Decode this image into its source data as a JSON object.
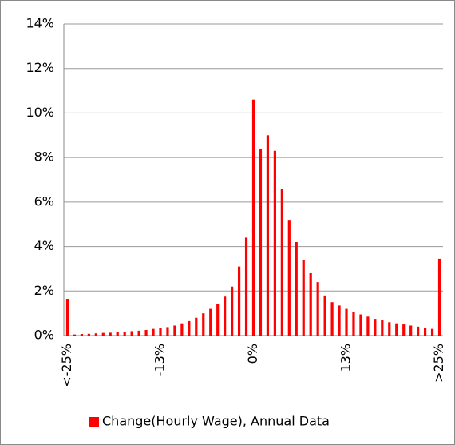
{
  "chart_data": {
    "type": "bar",
    "categories": [
      "<-25%",
      null,
      null,
      null,
      null,
      null,
      null,
      null,
      null,
      null,
      null,
      null,
      null,
      "-13%",
      null,
      null,
      null,
      null,
      null,
      null,
      null,
      null,
      null,
      null,
      null,
      null,
      "0%",
      null,
      null,
      null,
      null,
      null,
      null,
      null,
      null,
      null,
      null,
      null,
      null,
      "13%",
      null,
      null,
      null,
      null,
      null,
      null,
      null,
      null,
      null,
      null,
      null,
      null,
      ">25%"
    ],
    "series": [
      {
        "name": "Change(Hourly Wage), Annual Data",
        "color": "#ff0000",
        "values": [
          1.65,
          0.05,
          0.07,
          0.08,
          0.1,
          0.12,
          0.13,
          0.15,
          0.17,
          0.2,
          0.22,
          0.25,
          0.3,
          0.33,
          0.38,
          0.45,
          0.55,
          0.65,
          0.8,
          1.0,
          1.2,
          1.4,
          1.75,
          2.2,
          3.1,
          4.4,
          10.6,
          8.4,
          9.0,
          8.3,
          6.6,
          5.2,
          4.2,
          3.4,
          2.8,
          2.4,
          1.8,
          1.5,
          1.35,
          1.2,
          1.05,
          0.95,
          0.85,
          0.75,
          0.7,
          0.6,
          0.55,
          0.5,
          0.45,
          0.4,
          0.35,
          0.3,
          3.45
        ]
      }
    ],
    "ylim": [
      0,
      14
    ],
    "yticks": [
      {
        "value": 0,
        "label": "0%"
      },
      {
        "value": 2,
        "label": "2%"
      },
      {
        "value": 4,
        "label": "4%"
      },
      {
        "value": 6,
        "label": "6%"
      },
      {
        "value": 8,
        "label": "8%"
      },
      {
        "value": 10,
        "label": "10%"
      },
      {
        "value": 12,
        "label": "12%"
      },
      {
        "value": 14,
        "label": "14%"
      }
    ],
    "grid": true,
    "legend": "bottom"
  }
}
